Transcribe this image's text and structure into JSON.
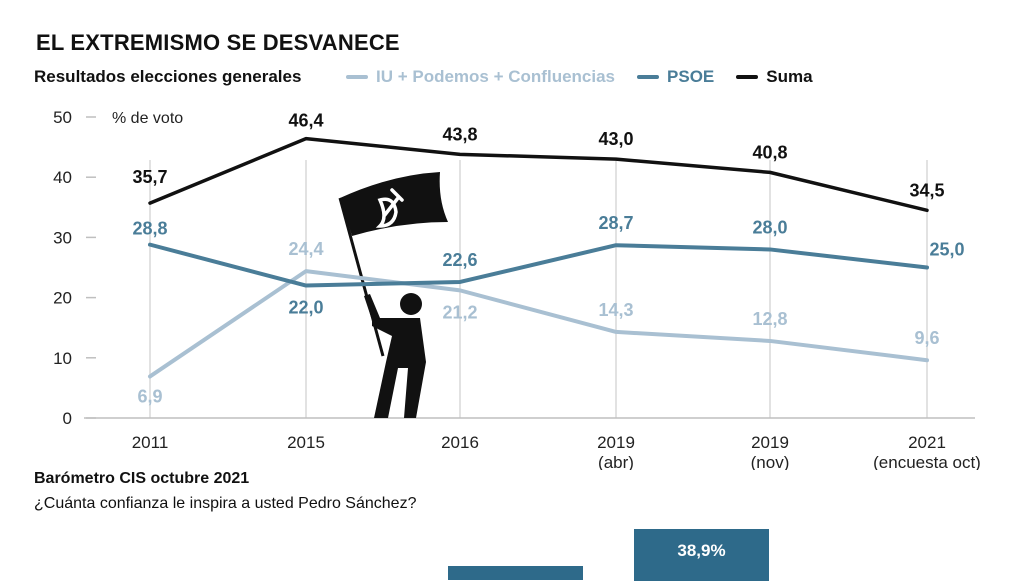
{
  "header": {
    "title": "EL EXTREMISMO SE DESVANECE",
    "subtitle": "Resultados elecciones generales"
  },
  "colors": {
    "iu": "#a9c0d2",
    "psoe": "#4a7d98",
    "suma": "#111111",
    "axis": "#bfbfbf",
    "bar": "#2e6a8a"
  },
  "chart_data": {
    "type": "line",
    "ylabel": "% de voto",
    "ylim": [
      0,
      50
    ],
    "yticks": [
      0,
      10,
      20,
      30,
      40,
      50
    ],
    "categories": [
      "2011",
      "2015",
      "2016",
      "2019\n(abr)",
      "2019\n(nov)",
      "2021\n(encuesta oct)"
    ],
    "series": [
      {
        "name": "IU + Podemos + Confluencias",
        "color": "#a9c0d2",
        "values": [
          6.9,
          24.4,
          21.2,
          14.3,
          12.8,
          9.6
        ],
        "labels": [
          "6,9",
          "24,4",
          "21,2",
          "14,3",
          "12,8",
          "9,6"
        ]
      },
      {
        "name": "PSOE",
        "color": "#4a7d98",
        "values": [
          28.8,
          22.0,
          22.6,
          28.7,
          28.0,
          25.0
        ],
        "labels": [
          "28,8",
          "22,0",
          "22,6",
          "28,7",
          "28,0",
          "25,0"
        ]
      },
      {
        "name": "Suma",
        "color": "#111111",
        "values": [
          35.7,
          46.4,
          43.8,
          43.0,
          40.8,
          34.5
        ],
        "labels": [
          "35,7",
          "46,4",
          "43,8",
          "43,0",
          "40,8",
          "34,5"
        ]
      }
    ]
  },
  "barometer": {
    "title": "Barómetro CIS octubre 2021",
    "question": "¿Cuánta confianza le inspira a usted Pedro Sánchez?",
    "bars": [
      {
        "label": "",
        "value": null
      },
      {
        "label": "38,9%",
        "value": 38.9
      }
    ]
  }
}
